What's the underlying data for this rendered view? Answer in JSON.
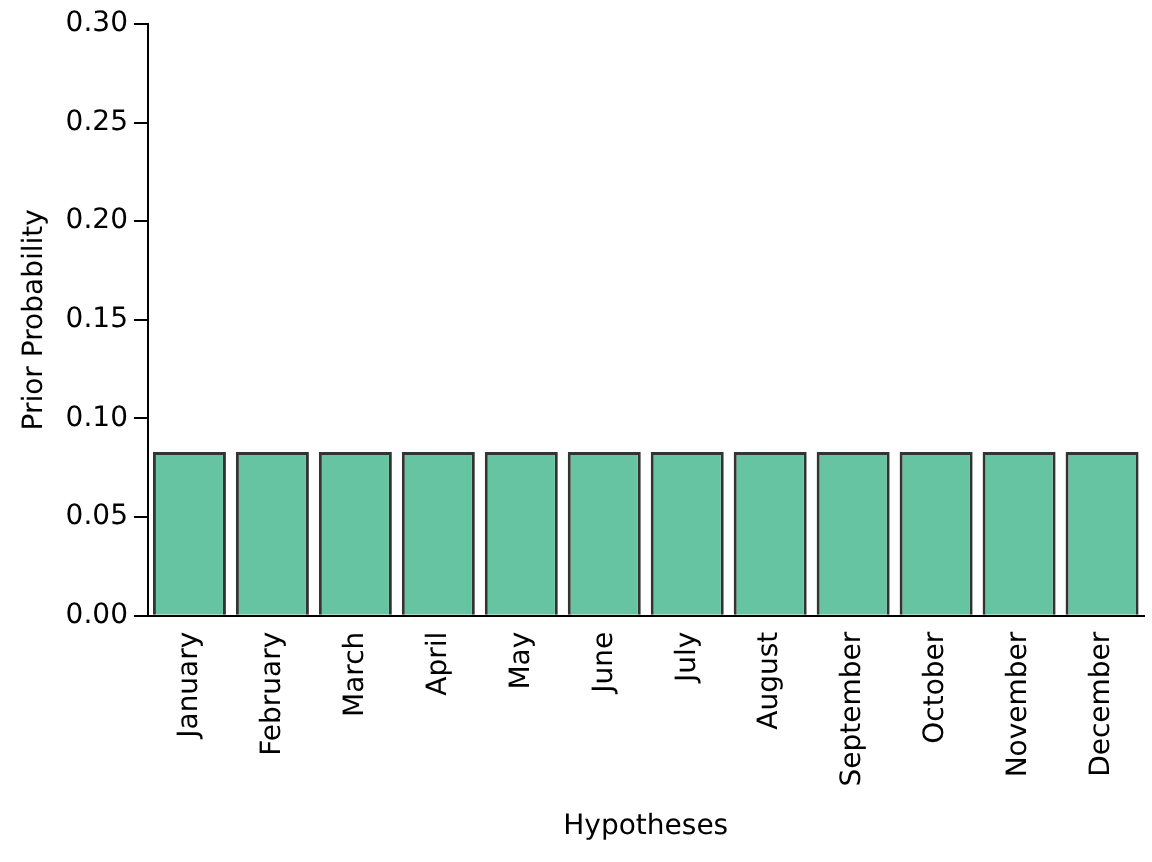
{
  "chart_data": {
    "type": "bar",
    "xlabel": "Hypotheses",
    "ylabel": "Prior Probability",
    "categories": [
      "January",
      "February",
      "March",
      "April",
      "May",
      "June",
      "July",
      "August",
      "September",
      "October",
      "November",
      "December"
    ],
    "values": [
      0.083,
      0.083,
      0.083,
      0.083,
      0.083,
      0.083,
      0.083,
      0.083,
      0.083,
      0.083,
      0.083,
      0.083
    ],
    "color": "#66c4a2",
    "ylim": [
      0,
      0.3
    ],
    "yticks": [
      {
        "value": 0,
        "label": "0.00"
      },
      {
        "value": 0.05,
        "label": "0.05"
      },
      {
        "value": 0.1,
        "label": "0.10"
      },
      {
        "value": 0.15,
        "label": "0.15"
      },
      {
        "value": 0.2,
        "label": "0.20"
      },
      {
        "value": 0.25,
        "label": "0.25"
      },
      {
        "value": 0.3,
        "label": "0.30"
      }
    ],
    "grid": false,
    "legend": false
  }
}
